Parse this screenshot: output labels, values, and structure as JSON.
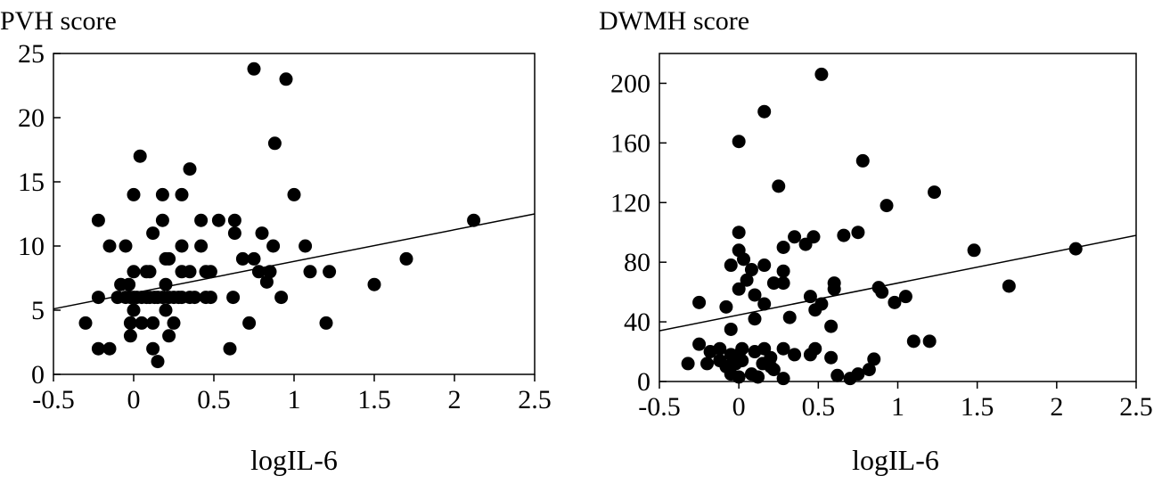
{
  "chart_data": [
    {
      "type": "scatter",
      "title": "PVH score",
      "xlabel": "logIL-6",
      "ylabel": "",
      "xlim": [
        -0.5,
        2.5
      ],
      "ylim": [
        0,
        25
      ],
      "xticks": [
        "-0.5",
        "0",
        "0.5",
        "1",
        "1.5",
        "2",
        "2.5"
      ],
      "yticks": [
        "0",
        "5",
        "10",
        "15",
        "20",
        "25"
      ],
      "grid": false,
      "trendline": {
        "x": [
          -0.5,
          2.5
        ],
        "y": [
          5.1,
          12.5
        ]
      },
      "points": [
        [
          0.75,
          23.8
        ],
        [
          0.95,
          23
        ],
        [
          0.88,
          18
        ],
        [
          0.35,
          16
        ],
        [
          0.04,
          17
        ],
        [
          0,
          14
        ],
        [
          0.18,
          14
        ],
        [
          0.3,
          14
        ],
        [
          1,
          14
        ],
        [
          -0.22,
          12
        ],
        [
          0.18,
          12
        ],
        [
          0.42,
          12
        ],
        [
          0.53,
          12
        ],
        [
          0.63,
          12
        ],
        [
          2.12,
          12
        ],
        [
          -0.15,
          10
        ],
        [
          -0.05,
          10
        ],
        [
          0.12,
          11
        ],
        [
          0.3,
          10
        ],
        [
          0.42,
          10
        ],
        [
          0.63,
          11
        ],
        [
          0.8,
          11
        ],
        [
          0.87,
          10
        ],
        [
          1.07,
          10
        ],
        [
          -0.08,
          7
        ],
        [
          -0.03,
          7
        ],
        [
          0,
          8
        ],
        [
          0.08,
          8
        ],
        [
          0.1,
          8
        ],
        [
          0.2,
          9
        ],
        [
          0.22,
          9
        ],
        [
          0.3,
          8
        ],
        [
          0.35,
          8
        ],
        [
          0.45,
          8
        ],
        [
          0.48,
          8
        ],
        [
          0.68,
          9
        ],
        [
          0.75,
          9
        ],
        [
          0.78,
          8
        ],
        [
          0.83,
          7.2
        ],
        [
          0.85,
          8
        ],
        [
          1.1,
          8
        ],
        [
          1.22,
          8
        ],
        [
          1.5,
          7
        ],
        [
          1.7,
          9
        ],
        [
          -0.22,
          6
        ],
        [
          -0.1,
          6
        ],
        [
          -0.05,
          6
        ],
        [
          -0.02,
          6
        ],
        [
          0,
          6
        ],
        [
          0.02,
          6
        ],
        [
          0.05,
          6
        ],
        [
          0.08,
          6
        ],
        [
          0.1,
          6
        ],
        [
          0.13,
          6
        ],
        [
          0.15,
          6
        ],
        [
          0.18,
          6
        ],
        [
          0.2,
          7
        ],
        [
          0.22,
          6
        ],
        [
          0.25,
          6
        ],
        [
          0.28,
          6
        ],
        [
          0.3,
          6
        ],
        [
          0.35,
          6
        ],
        [
          0.38,
          6
        ],
        [
          0.45,
          6
        ],
        [
          0.48,
          6
        ],
        [
          0.62,
          6
        ],
        [
          0.92,
          6
        ],
        [
          -0.02,
          4
        ],
        [
          0,
          5
        ],
        [
          0.05,
          4
        ],
        [
          0.12,
          4
        ],
        [
          0.2,
          5
        ],
        [
          0.25,
          4
        ],
        [
          0.72,
          4
        ],
        [
          1.2,
          4
        ],
        [
          -0.3,
          4
        ],
        [
          -0.02,
          3
        ],
        [
          0.22,
          3
        ],
        [
          -0.22,
          2
        ],
        [
          -0.15,
          2
        ],
        [
          0.12,
          2
        ],
        [
          0.15,
          1
        ],
        [
          0.6,
          2
        ]
      ]
    },
    {
      "type": "scatter",
      "title": "DWMH score",
      "xlabel": "logIL-6",
      "ylabel": "",
      "xlim": [
        -0.5,
        2.5
      ],
      "ylim": [
        0,
        220
      ],
      "xticks": [
        "-0.5",
        "0",
        "0.5",
        "1",
        "1.5",
        "2",
        "2.5"
      ],
      "yticks": [
        "0",
        "40",
        "80",
        "120",
        "160",
        "200"
      ],
      "grid": false,
      "trendline": {
        "x": [
          -0.5,
          2.5
        ],
        "y": [
          34,
          98
        ]
      },
      "points": [
        [
          0.52,
          206
        ],
        [
          0.16,
          181
        ],
        [
          0,
          161
        ],
        [
          0.78,
          148
        ],
        [
          0.25,
          131
        ],
        [
          1.23,
          127
        ],
        [
          0.93,
          118
        ],
        [
          0,
          100
        ],
        [
          0.75,
          100
        ],
        [
          0.66,
          98
        ],
        [
          0.47,
          97
        ],
        [
          0.35,
          97
        ],
        [
          0.28,
          90
        ],
        [
          1.48,
          88
        ],
        [
          2.12,
          89
        ],
        [
          0,
          88
        ],
        [
          0.03,
          82
        ],
        [
          -0.05,
          78
        ],
        [
          0.08,
          75
        ],
        [
          0.16,
          78
        ],
        [
          0.05,
          68
        ],
        [
          0.22,
          66
        ],
        [
          0.28,
          74
        ],
        [
          0.42,
          92
        ],
        [
          0.6,
          66
        ],
        [
          0.6,
          62
        ],
        [
          0.88,
          63
        ],
        [
          0.9,
          60
        ],
        [
          0.98,
          53
        ],
        [
          1.05,
          57
        ],
        [
          1.7,
          64
        ],
        [
          0,
          62
        ],
        [
          0.1,
          58
        ],
        [
          0.16,
          52
        ],
        [
          0.28,
          66
        ],
        [
          -0.08,
          50
        ],
        [
          -0.25,
          53
        ],
        [
          0.1,
          42
        ],
        [
          0.32,
          43
        ],
        [
          0.45,
          57
        ],
        [
          0.48,
          48
        ],
        [
          0.52,
          52
        ],
        [
          0.58,
          37
        ],
        [
          -0.05,
          35
        ],
        [
          -0.25,
          25
        ],
        [
          -0.18,
          20
        ],
        [
          -0.12,
          22
        ],
        [
          -0.05,
          18
        ],
        [
          0,
          18
        ],
        [
          0.02,
          22
        ],
        [
          0.1,
          20
        ],
        [
          0.16,
          22
        ],
        [
          0.2,
          16
        ],
        [
          0.28,
          22
        ],
        [
          0.35,
          18
        ],
        [
          0.45,
          18
        ],
        [
          0.48,
          22
        ],
        [
          0.58,
          16
        ],
        [
          1.1,
          27
        ],
        [
          1.2,
          27
        ],
        [
          -0.32,
          12
        ],
        [
          -0.2,
          12
        ],
        [
          -0.12,
          14
        ],
        [
          -0.08,
          10
        ],
        [
          -0.02,
          12
        ],
        [
          0.02,
          14
        ],
        [
          0.15,
          12
        ],
        [
          0.2,
          10
        ],
        [
          0.22,
          8
        ],
        [
          0.85,
          15
        ],
        [
          0.82,
          8
        ],
        [
          -0.05,
          5
        ],
        [
          0,
          3
        ],
        [
          0.08,
          5
        ],
        [
          0.12,
          3
        ],
        [
          0.28,
          2
        ],
        [
          0.62,
          4
        ],
        [
          0.7,
          2
        ],
        [
          0.75,
          5
        ]
      ]
    }
  ]
}
